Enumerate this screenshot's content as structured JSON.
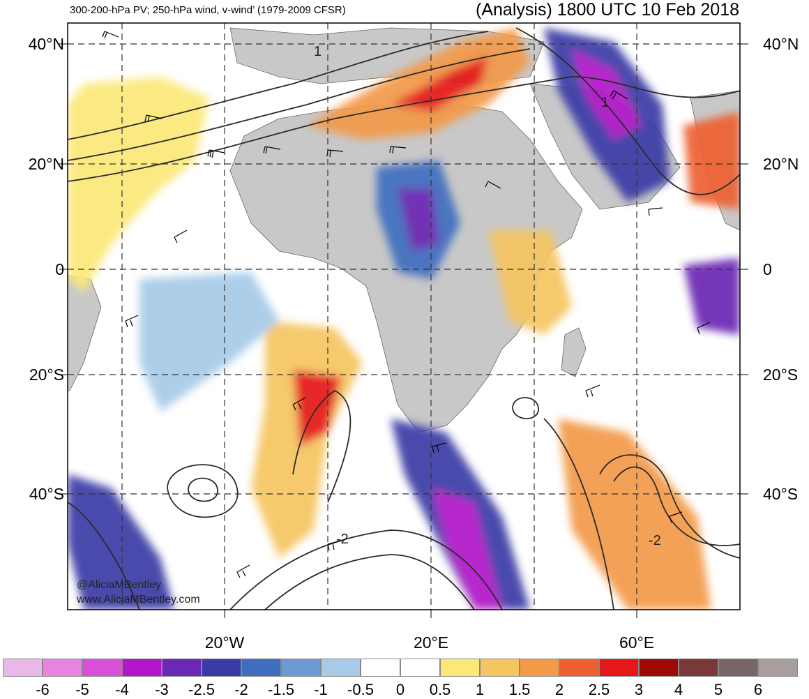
{
  "header": {
    "left": "300-200-hPa PV; 250-hPa wind, v-wind’ (1979-2009 CFSR)",
    "right": "(Analysis) 1800 UTC 10 Feb 2018"
  },
  "lat_labels": [
    "40°N",
    "20°N",
    "0",
    "20°S",
    "40°S"
  ],
  "lon_labels": [
    "20°W",
    "20°E",
    "60°E"
  ],
  "contour_labels": [
    "1",
    "1",
    "-2",
    "-2"
  ],
  "credits": [
    "@AliciaMBentley",
    "www.AliciaMBentley.com"
  ],
  "colorbar": {
    "colors": [
      "#eab8e6",
      "#e883e4",
      "#d94fd8",
      "#b116c8",
      "#6a28b4",
      "#3a3aa6",
      "#3f6ec0",
      "#6e9ad4",
      "#a6cae8",
      "#ffffff",
      "#ffffff",
      "#fbe878",
      "#f5c560",
      "#f39a48",
      "#ee6030",
      "#e41818",
      "#a00808",
      "#7a3838",
      "#786666",
      "#a89e9e"
    ],
    "labels": [
      "-6",
      "-5",
      "-4",
      "-3",
      "-2.5",
      "-2",
      "-1.5",
      "-1",
      "-0.5",
      "0",
      "0.5",
      "1",
      "1.5",
      "2",
      "2.5",
      "3",
      "4",
      "5",
      "6"
    ]
  },
  "map_colors": {
    "land": "#c8c8c8",
    "ocean": "#ffffff",
    "grid": "#333333",
    "contour": "#2a2a2a"
  }
}
